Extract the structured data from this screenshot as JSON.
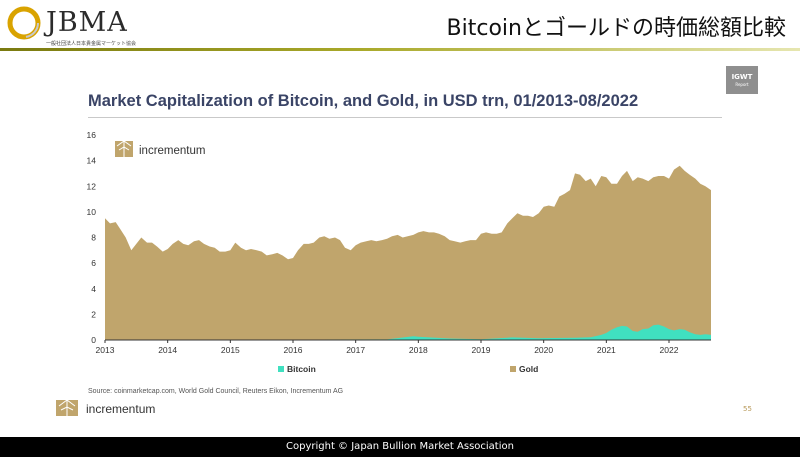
{
  "header": {
    "logo_text": "JBMA",
    "logo_subtitle": "一般社団法人日本貴金属マーケット協会",
    "slide_title": "Bitcoinとゴールドの時価総額比較"
  },
  "badge": {
    "main": "IGWT",
    "sub": "Report"
  },
  "source": "Source: coinmarketcap.com, World Gold Council, Reuters Eikon, Incrementum AG",
  "footer_brand": "incrementum",
  "page_number": "55",
  "copyright": "Copyright © Japan Bullion Market Association",
  "colors": {
    "gold": "#c0a56c",
    "bitcoin": "#40e0c0",
    "title": "#3a4466"
  },
  "chart_data": {
    "type": "area",
    "title": "Market Capitalization of Bitcoin, and Gold, in USD trn, 01/2013-08/2022",
    "watermark": "incrementum",
    "ylim": [
      0,
      16
    ],
    "xlim": [
      2013.0,
      2022.67
    ],
    "y_ticks": [
      0,
      2,
      4,
      6,
      8,
      10,
      12,
      14,
      16
    ],
    "x_ticks": [
      2013,
      2014,
      2015,
      2016,
      2017,
      2018,
      2019,
      2020,
      2021,
      2022
    ],
    "grid": false,
    "legend_position": "bottom",
    "series": [
      {
        "name": "Gold",
        "color": "#c0a56c",
        "points": [
          [
            2013.0,
            9.5
          ],
          [
            2013.08,
            9.1
          ],
          [
            2013.17,
            9.2
          ],
          [
            2013.25,
            8.6
          ],
          [
            2013.33,
            8.0
          ],
          [
            2013.42,
            7.0
          ],
          [
            2013.5,
            7.5
          ],
          [
            2013.58,
            8.0
          ],
          [
            2013.67,
            7.6
          ],
          [
            2013.75,
            7.6
          ],
          [
            2013.83,
            7.3
          ],
          [
            2013.92,
            6.9
          ],
          [
            2014.0,
            7.1
          ],
          [
            2014.08,
            7.5
          ],
          [
            2014.17,
            7.8
          ],
          [
            2014.25,
            7.5
          ],
          [
            2014.33,
            7.4
          ],
          [
            2014.42,
            7.7
          ],
          [
            2014.5,
            7.8
          ],
          [
            2014.58,
            7.5
          ],
          [
            2014.67,
            7.3
          ],
          [
            2014.75,
            7.2
          ],
          [
            2014.83,
            6.9
          ],
          [
            2014.92,
            6.9
          ],
          [
            2015.0,
            7.0
          ],
          [
            2015.08,
            7.6
          ],
          [
            2015.17,
            7.2
          ],
          [
            2015.25,
            7.0
          ],
          [
            2015.33,
            7.1
          ],
          [
            2015.42,
            7.0
          ],
          [
            2015.5,
            6.9
          ],
          [
            2015.58,
            6.6
          ],
          [
            2015.67,
            6.7
          ],
          [
            2015.75,
            6.8
          ],
          [
            2015.83,
            6.6
          ],
          [
            2015.92,
            6.3
          ],
          [
            2016.0,
            6.4
          ],
          [
            2016.08,
            7.0
          ],
          [
            2016.17,
            7.5
          ],
          [
            2016.25,
            7.5
          ],
          [
            2016.33,
            7.6
          ],
          [
            2016.42,
            8.0
          ],
          [
            2016.5,
            8.1
          ],
          [
            2016.58,
            7.9
          ],
          [
            2016.67,
            8.0
          ],
          [
            2016.75,
            7.8
          ],
          [
            2016.83,
            7.2
          ],
          [
            2016.92,
            7.0
          ],
          [
            2017.0,
            7.4
          ],
          [
            2017.08,
            7.6
          ],
          [
            2017.17,
            7.7
          ],
          [
            2017.25,
            7.8
          ],
          [
            2017.33,
            7.7
          ],
          [
            2017.42,
            7.8
          ],
          [
            2017.5,
            7.9
          ],
          [
            2017.58,
            8.1
          ],
          [
            2017.67,
            8.2
          ],
          [
            2017.75,
            8.0
          ],
          [
            2017.83,
            8.1
          ],
          [
            2017.92,
            8.2
          ],
          [
            2018.0,
            8.4
          ],
          [
            2018.08,
            8.5
          ],
          [
            2018.17,
            8.4
          ],
          [
            2018.25,
            8.4
          ],
          [
            2018.33,
            8.3
          ],
          [
            2018.42,
            8.1
          ],
          [
            2018.5,
            7.8
          ],
          [
            2018.58,
            7.7
          ],
          [
            2018.67,
            7.6
          ],
          [
            2018.75,
            7.7
          ],
          [
            2018.83,
            7.8
          ],
          [
            2018.92,
            7.8
          ],
          [
            2019.0,
            8.3
          ],
          [
            2019.08,
            8.4
          ],
          [
            2019.17,
            8.3
          ],
          [
            2019.25,
            8.3
          ],
          [
            2019.33,
            8.4
          ],
          [
            2019.42,
            9.1
          ],
          [
            2019.5,
            9.5
          ],
          [
            2019.58,
            9.9
          ],
          [
            2019.67,
            9.7
          ],
          [
            2019.75,
            9.7
          ],
          [
            2019.83,
            9.6
          ],
          [
            2019.92,
            9.9
          ],
          [
            2020.0,
            10.4
          ],
          [
            2020.08,
            10.5
          ],
          [
            2020.17,
            10.4
          ],
          [
            2020.25,
            11.2
          ],
          [
            2020.33,
            11.4
          ],
          [
            2020.42,
            11.7
          ],
          [
            2020.5,
            13.0
          ],
          [
            2020.58,
            12.9
          ],
          [
            2020.67,
            12.4
          ],
          [
            2020.75,
            12.6
          ],
          [
            2020.83,
            12.0
          ],
          [
            2020.92,
            12.8
          ],
          [
            2021.0,
            12.7
          ],
          [
            2021.08,
            12.2
          ],
          [
            2021.17,
            12.2
          ],
          [
            2021.25,
            12.8
          ],
          [
            2021.33,
            13.2
          ],
          [
            2021.42,
            12.4
          ],
          [
            2021.5,
            12.7
          ],
          [
            2021.58,
            12.6
          ],
          [
            2021.67,
            12.4
          ],
          [
            2021.75,
            12.7
          ],
          [
            2021.83,
            12.8
          ],
          [
            2021.92,
            12.8
          ],
          [
            2022.0,
            12.6
          ],
          [
            2022.08,
            13.3
          ],
          [
            2022.17,
            13.6
          ],
          [
            2022.25,
            13.2
          ],
          [
            2022.33,
            12.9
          ],
          [
            2022.42,
            12.6
          ],
          [
            2022.5,
            12.2
          ],
          [
            2022.58,
            12.0
          ],
          [
            2022.67,
            11.7
          ]
        ]
      },
      {
        "name": "Bitcoin",
        "color": "#40e0c0",
        "points": [
          [
            2013.0,
            0.0
          ],
          [
            2017.5,
            0.05
          ],
          [
            2017.92,
            0.3
          ],
          [
            2018.0,
            0.25
          ],
          [
            2018.5,
            0.12
          ],
          [
            2019.0,
            0.06
          ],
          [
            2019.5,
            0.2
          ],
          [
            2019.92,
            0.13
          ],
          [
            2020.0,
            0.15
          ],
          [
            2020.5,
            0.18
          ],
          [
            2020.75,
            0.22
          ],
          [
            2020.92,
            0.4
          ],
          [
            2021.0,
            0.55
          ],
          [
            2021.08,
            0.8
          ],
          [
            2021.17,
            1.0
          ],
          [
            2021.25,
            1.1
          ],
          [
            2021.33,
            1.05
          ],
          [
            2021.42,
            0.7
          ],
          [
            2021.5,
            0.65
          ],
          [
            2021.58,
            0.85
          ],
          [
            2021.67,
            0.9
          ],
          [
            2021.75,
            1.15
          ],
          [
            2021.83,
            1.2
          ],
          [
            2021.92,
            1.05
          ],
          [
            2022.0,
            0.85
          ],
          [
            2022.08,
            0.75
          ],
          [
            2022.17,
            0.85
          ],
          [
            2022.25,
            0.8
          ],
          [
            2022.33,
            0.6
          ],
          [
            2022.42,
            0.45
          ],
          [
            2022.5,
            0.4
          ],
          [
            2022.58,
            0.45
          ],
          [
            2022.67,
            0.4
          ]
        ]
      }
    ]
  }
}
